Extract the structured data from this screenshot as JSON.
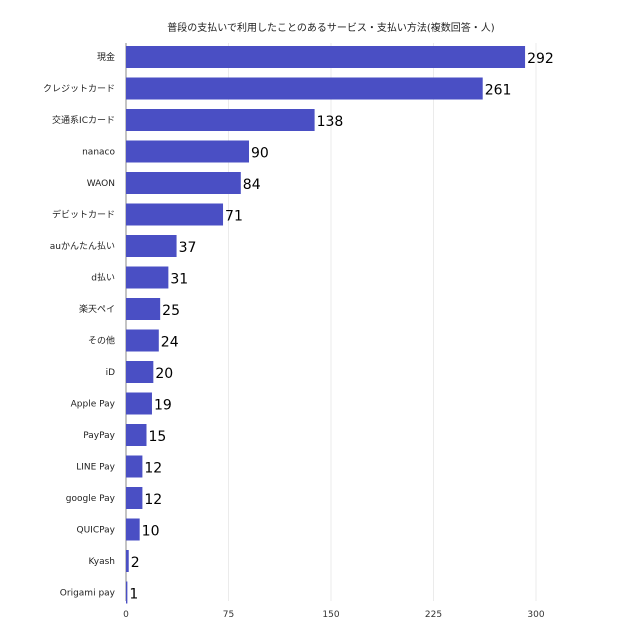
{
  "chart_data": {
    "type": "bar",
    "orientation": "horizontal",
    "title": "普段の支払いで利用したことのあるサービス・支払い方法(複数回答・人)",
    "categories": [
      "現金",
      "クレジットカード",
      "交通系ICカード",
      "nanaco",
      "WAON",
      "デビットカード",
      "auかんたん払い",
      "d払い",
      "楽天ペイ",
      "その他",
      "iD",
      "Apple Pay",
      "PayPay",
      "LINE Pay",
      "google Pay",
      "QUICPay",
      "Kyash",
      "Origami pay"
    ],
    "values": [
      292,
      261,
      138,
      90,
      84,
      71,
      37,
      31,
      25,
      24,
      20,
      19,
      15,
      12,
      12,
      10,
      2,
      1
    ],
    "xlim": [
      0,
      300
    ],
    "xticks": [
      0,
      75,
      150,
      225,
      300
    ],
    "grid": true,
    "legend": "none",
    "bar_color": "#4a4fc4"
  }
}
